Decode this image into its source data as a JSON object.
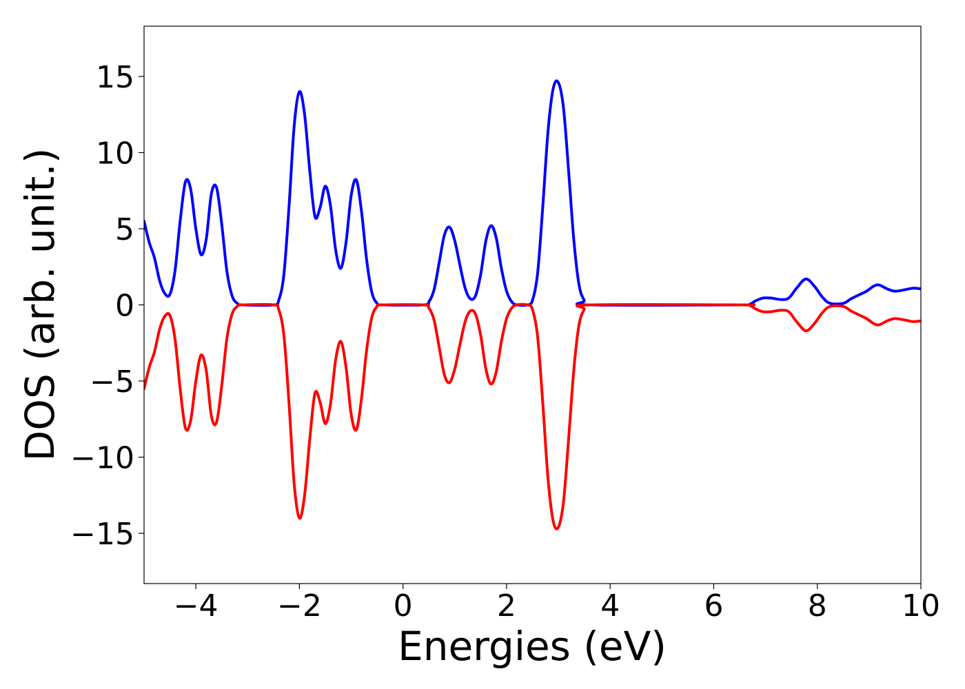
{
  "chart_data": {
    "type": "line",
    "xlabel": "Energies (eV)",
    "ylabel": "DOS (arb. unit.)",
    "xlim": [
      -5,
      10
    ],
    "ylim": [
      -18.3,
      18.3
    ],
    "grid": false,
    "legend": "none",
    "xticks": [
      -4,
      -2,
      0,
      2,
      4,
      6,
      8,
      10
    ],
    "xtick_labels": [
      "−4",
      "−2",
      "0",
      "2",
      "4",
      "6",
      "8",
      "10"
    ],
    "yticks": [
      15,
      10,
      5,
      0,
      -5,
      -10,
      -15
    ],
    "ytick_labels": [
      "15",
      "10",
      "5",
      "0",
      "−5",
      "−10",
      "−15"
    ],
    "series": [
      {
        "color": "#0000ff",
        "points": [
          [
            -5.0,
            5.5
          ],
          [
            -4.9,
            4.1
          ],
          [
            -4.8,
            3.1
          ],
          [
            -4.7,
            1.6
          ],
          [
            -4.6,
            0.75
          ],
          [
            -4.5,
            0.7
          ],
          [
            -4.4,
            2.3
          ],
          [
            -4.3,
            5.6
          ],
          [
            -4.2,
            8.1
          ],
          [
            -4.1,
            7.6
          ],
          [
            -4.0,
            5.0
          ],
          [
            -3.9,
            3.3
          ],
          [
            -3.8,
            4.3
          ],
          [
            -3.7,
            7.3
          ],
          [
            -3.6,
            7.7
          ],
          [
            -3.5,
            5.3
          ],
          [
            -3.4,
            2.2
          ],
          [
            -3.3,
            0.6
          ],
          [
            -3.2,
            0.1
          ],
          [
            -3.1,
            0.0
          ],
          [
            -2.5,
            0.0
          ],
          [
            -2.4,
            0.3
          ],
          [
            -2.3,
            2.0
          ],
          [
            -2.2,
            6.5
          ],
          [
            -2.1,
            11.8
          ],
          [
            -2.0,
            14.0
          ],
          [
            -1.9,
            12.5
          ],
          [
            -1.8,
            8.8
          ],
          [
            -1.7,
            5.8
          ],
          [
            -1.6,
            6.4
          ],
          [
            -1.5,
            7.8
          ],
          [
            -1.4,
            6.5
          ],
          [
            -1.3,
            3.6
          ],
          [
            -1.2,
            2.4
          ],
          [
            -1.1,
            4.1
          ],
          [
            -1.0,
            7.2
          ],
          [
            -0.9,
            8.2
          ],
          [
            -0.8,
            6.1
          ],
          [
            -0.7,
            2.9
          ],
          [
            -0.6,
            0.8
          ],
          [
            -0.5,
            0.1
          ],
          [
            -0.4,
            0.0
          ],
          [
            0.4,
            0.0
          ],
          [
            0.5,
            0.2
          ],
          [
            0.6,
            1.0
          ],
          [
            0.7,
            2.8
          ],
          [
            0.8,
            4.6
          ],
          [
            0.9,
            5.1
          ],
          [
            1.0,
            4.2
          ],
          [
            1.1,
            2.6
          ],
          [
            1.2,
            1.1
          ],
          [
            1.3,
            0.4
          ],
          [
            1.4,
            0.6
          ],
          [
            1.5,
            2.0
          ],
          [
            1.6,
            4.2
          ],
          [
            1.7,
            5.2
          ],
          [
            1.8,
            4.4
          ],
          [
            1.9,
            2.4
          ],
          [
            2.0,
            0.9
          ],
          [
            2.1,
            0.2
          ],
          [
            2.2,
            0.0
          ],
          [
            2.4,
            0.0
          ],
          [
            2.5,
            0.3
          ],
          [
            2.6,
            2.1
          ],
          [
            2.7,
            6.5
          ],
          [
            2.8,
            11.4
          ],
          [
            2.9,
            14.2
          ],
          [
            3.0,
            14.6
          ],
          [
            3.1,
            12.9
          ],
          [
            3.2,
            8.7
          ],
          [
            3.3,
            4.2
          ],
          [
            3.4,
            1.3
          ],
          [
            3.5,
            0.3
          ],
          [
            3.6,
            0.0
          ],
          [
            6.5,
            0.0
          ],
          [
            6.7,
            0.05
          ],
          [
            6.8,
            0.25
          ],
          [
            6.95,
            0.45
          ],
          [
            7.1,
            0.45
          ],
          [
            7.3,
            0.35
          ],
          [
            7.45,
            0.45
          ],
          [
            7.6,
            1.1
          ],
          [
            7.78,
            1.7
          ],
          [
            7.95,
            1.2
          ],
          [
            8.1,
            0.5
          ],
          [
            8.25,
            0.1
          ],
          [
            8.5,
            0.1
          ],
          [
            8.65,
            0.4
          ],
          [
            8.8,
            0.65
          ],
          [
            8.95,
            0.9
          ],
          [
            9.1,
            1.25
          ],
          [
            9.2,
            1.3
          ],
          [
            9.35,
            1.05
          ],
          [
            9.5,
            0.9
          ],
          [
            9.7,
            1.0
          ],
          [
            9.85,
            1.1
          ],
          [
            10.0,
            1.05
          ]
        ]
      },
      {
        "color": "#ff0000",
        "points": [
          [
            -5.0,
            -5.5
          ],
          [
            -4.9,
            -4.1
          ],
          [
            -4.8,
            -3.1
          ],
          [
            -4.7,
            -1.6
          ],
          [
            -4.6,
            -0.75
          ],
          [
            -4.5,
            -0.7
          ],
          [
            -4.4,
            -2.3
          ],
          [
            -4.3,
            -5.6
          ],
          [
            -4.2,
            -8.1
          ],
          [
            -4.1,
            -7.6
          ],
          [
            -4.0,
            -5.0
          ],
          [
            -3.9,
            -3.3
          ],
          [
            -3.8,
            -4.3
          ],
          [
            -3.7,
            -7.3
          ],
          [
            -3.6,
            -7.7
          ],
          [
            -3.5,
            -5.3
          ],
          [
            -3.4,
            -2.2
          ],
          [
            -3.3,
            -0.6
          ],
          [
            -3.2,
            -0.1
          ],
          [
            -3.1,
            0.0
          ],
          [
            -2.5,
            0.0
          ],
          [
            -2.4,
            -0.3
          ],
          [
            -2.3,
            -2.0
          ],
          [
            -2.2,
            -6.5
          ],
          [
            -2.1,
            -11.8
          ],
          [
            -2.0,
            -14.0
          ],
          [
            -1.9,
            -12.5
          ],
          [
            -1.8,
            -8.8
          ],
          [
            -1.7,
            -5.8
          ],
          [
            -1.6,
            -6.4
          ],
          [
            -1.5,
            -7.8
          ],
          [
            -1.4,
            -6.5
          ],
          [
            -1.3,
            -3.6
          ],
          [
            -1.2,
            -2.4
          ],
          [
            -1.1,
            -4.1
          ],
          [
            -1.0,
            -7.2
          ],
          [
            -0.9,
            -8.2
          ],
          [
            -0.8,
            -6.1
          ],
          [
            -0.7,
            -2.9
          ],
          [
            -0.6,
            -0.8
          ],
          [
            -0.5,
            -0.1
          ],
          [
            -0.4,
            0.0
          ],
          [
            0.4,
            0.0
          ],
          [
            0.5,
            -0.2
          ],
          [
            0.6,
            -1.0
          ],
          [
            0.7,
            -2.8
          ],
          [
            0.8,
            -4.6
          ],
          [
            0.9,
            -5.1
          ],
          [
            1.0,
            -4.2
          ],
          [
            1.1,
            -2.6
          ],
          [
            1.2,
            -1.1
          ],
          [
            1.3,
            -0.4
          ],
          [
            1.4,
            -0.6
          ],
          [
            1.5,
            -2.0
          ],
          [
            1.6,
            -4.2
          ],
          [
            1.7,
            -5.2
          ],
          [
            1.8,
            -4.4
          ],
          [
            1.9,
            -2.4
          ],
          [
            2.0,
            -0.9
          ],
          [
            2.1,
            -0.2
          ],
          [
            2.2,
            0.0
          ],
          [
            2.4,
            0.0
          ],
          [
            2.5,
            -0.3
          ],
          [
            2.6,
            -2.1
          ],
          [
            2.7,
            -6.5
          ],
          [
            2.8,
            -11.4
          ],
          [
            2.9,
            -14.2
          ],
          [
            3.0,
            -14.6
          ],
          [
            3.1,
            -12.9
          ],
          [
            3.2,
            -8.7
          ],
          [
            3.3,
            -4.2
          ],
          [
            3.4,
            -1.3
          ],
          [
            3.5,
            -0.3
          ],
          [
            3.6,
            0.0
          ],
          [
            6.5,
            0.0
          ],
          [
            6.7,
            -0.05
          ],
          [
            6.8,
            -0.25
          ],
          [
            6.95,
            -0.45
          ],
          [
            7.1,
            -0.45
          ],
          [
            7.3,
            -0.35
          ],
          [
            7.45,
            -0.45
          ],
          [
            7.6,
            -1.1
          ],
          [
            7.78,
            -1.7
          ],
          [
            7.95,
            -1.2
          ],
          [
            8.1,
            -0.5
          ],
          [
            8.25,
            -0.1
          ],
          [
            8.5,
            -0.1
          ],
          [
            8.65,
            -0.4
          ],
          [
            8.8,
            -0.65
          ],
          [
            8.95,
            -0.9
          ],
          [
            9.1,
            -1.25
          ],
          [
            9.2,
            -1.3
          ],
          [
            9.35,
            -1.05
          ],
          [
            9.5,
            -0.9
          ],
          [
            9.7,
            -1.0
          ],
          [
            9.85,
            -1.1
          ],
          [
            10.0,
            -1.05
          ]
        ]
      }
    ]
  }
}
